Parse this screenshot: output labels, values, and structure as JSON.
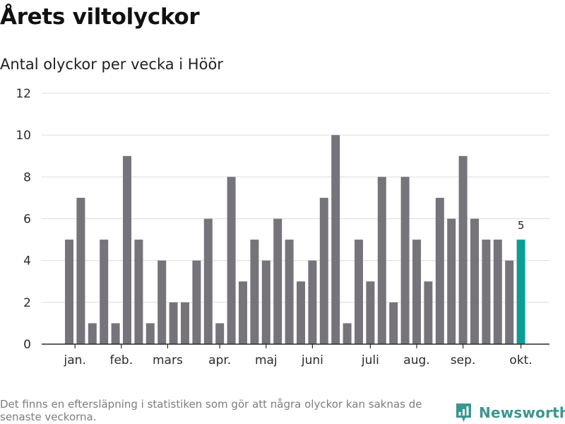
{
  "header": {
    "title": "Årets viltolyckor",
    "subtitle": "Antal olyckor per vecka i Höör"
  },
  "footer": {
    "note": "Det finns en eftersläpning i statistiken som gör att några olyckor kan saknas de senaste veckorna.",
    "brand": "Newsworthy"
  },
  "colors": {
    "bar": "#76747a",
    "highlight": "#0b9e96",
    "grid": "#dddddd",
    "axis": "#2a2a2a",
    "brand": "#3a9690"
  },
  "chart_data": {
    "type": "bar",
    "title": "Årets viltolyckor",
    "subtitle": "Antal olyckor per vecka i Höör",
    "xlabel": "",
    "ylabel": "",
    "ylim": [
      0,
      12
    ],
    "yticks": [
      0,
      2,
      4,
      6,
      8,
      10,
      12
    ],
    "grid": true,
    "values": [
      5,
      7,
      1,
      5,
      1,
      9,
      5,
      1,
      4,
      2,
      2,
      4,
      6,
      1,
      8,
      3,
      5,
      4,
      6,
      5,
      3,
      4,
      7,
      10,
      1,
      5,
      3,
      8,
      2,
      8,
      5,
      3,
      7,
      6,
      9,
      6,
      5,
      5,
      4,
      5
    ],
    "highlight_index": 39,
    "highlight_label": "5",
    "month_labels": [
      {
        "label": "jan.",
        "at": 0.5
      },
      {
        "label": "feb.",
        "at": 4.5
      },
      {
        "label": "mars",
        "at": 8.5
      },
      {
        "label": "apr.",
        "at": 13
      },
      {
        "label": "maj",
        "at": 17
      },
      {
        "label": "juni",
        "at": 21
      },
      {
        "label": "juli",
        "at": 26
      },
      {
        "label": "aug.",
        "at": 30
      },
      {
        "label": "sep.",
        "at": 34
      },
      {
        "label": "okt.",
        "at": 39
      }
    ]
  }
}
